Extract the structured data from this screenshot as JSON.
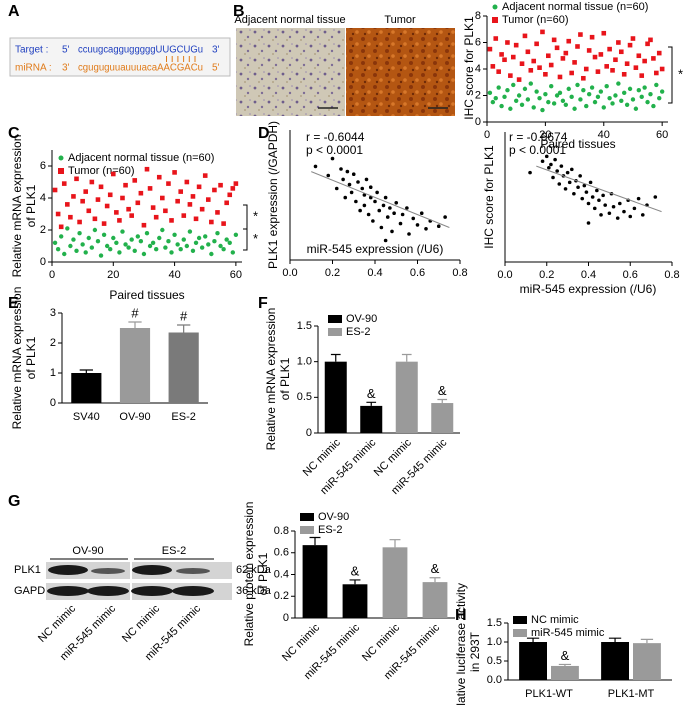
{
  "panel_labels": [
    "A",
    "B",
    "C",
    "D",
    "E",
    "F",
    "G",
    "H"
  ],
  "sequence": {
    "target_label": "Target :",
    "target_5": "5'",
    "target_seq": "ccuugcaggugggggUUGCUGu",
    "target_3": "3'",
    "mirna_label": "miRNA :",
    "mirna_3": "3'",
    "mirna_seq": "cguguguuauuuacaAACGACu",
    "mirna_5": "5'"
  },
  "ihc_images": [
    "Adjacent normal tissue",
    "Tumor"
  ],
  "western_blot": {
    "groups": [
      "OV-90",
      "ES-2"
    ],
    "proteins": [
      "PLK1",
      "GAPDH"
    ],
    "sizes": [
      "62 kDa",
      "36 kDa"
    ],
    "lanes": [
      "NC mimic",
      "miR-545 mimic",
      "NC mimic",
      "miR-545 mimic"
    ]
  },
  "chart_data": [
    {
      "type": "scatter",
      "ylabel": [
        "IHC score for PLK1"
      ],
      "xlabel": "Paired tissues",
      "x": [
        1,
        2,
        3,
        4,
        5,
        6,
        7,
        8,
        9,
        10,
        11,
        12,
        13,
        14,
        15,
        16,
        17,
        18,
        19,
        20,
        21,
        22,
        23,
        24,
        25,
        26,
        27,
        28,
        29,
        30,
        31,
        32,
        33,
        34,
        35,
        36,
        37,
        38,
        39,
        40,
        41,
        42,
        43,
        44,
        45,
        46,
        47,
        48,
        49,
        50,
        51,
        52,
        53,
        54,
        55,
        56,
        57,
        58,
        59,
        60
      ],
      "xlim": [
        0,
        62
      ],
      "xticks": [
        0,
        20,
        40,
        60
      ],
      "ylim": [
        0,
        8
      ],
      "yticks": [
        0,
        2,
        4,
        6,
        8
      ],
      "series": [
        {
          "name": "Adjacent normal tissue (n=60)",
          "color": "#22b14c",
          "marker": "circle",
          "values": [
            2.2,
            1.5,
            1.8,
            2.6,
            1.2,
            1.9,
            2.4,
            1.0,
            2.8,
            1.6,
            2.0,
            1.3,
            2.5,
            1.7,
            2.9,
            1.1,
            2.3,
            1.8,
            0.9,
            2.1,
            1.5,
            2.7,
            1.4,
            2.0,
            2.2,
            1.6,
            1.3,
            2.5,
            1.9,
            1.0,
            2.8,
            1.7,
            2.4,
            1.2,
            2.1,
            2.6,
            1.5,
            1.9,
            2.3,
            1.1,
            2.7,
            1.8,
            1.4,
            2.0,
            2.9,
            1.6,
            2.2,
            1.3,
            2.5,
            1.7,
            1.0,
            2.4,
            1.9,
            2.6,
            1.5,
            2.1,
            1.2,
            2.8,
            1.8,
            2.3
          ]
        },
        {
          "name": "Tumor (n=60)",
          "color": "#e8141b",
          "marker": "square",
          "values": [
            5.5,
            4.2,
            6.3,
            3.8,
            5.1,
            4.7,
            6.0,
            3.5,
            4.9,
            5.8,
            3.2,
            4.4,
            6.5,
            5.3,
            3.9,
            4.6,
            5.9,
            4.1,
            6.8,
            3.6,
            5.0,
            4.3,
            6.2,
            5.6,
            3.4,
            4.8,
            5.2,
            6.1,
            3.7,
            4.5,
            5.7,
            6.6,
            3.3,
            4.0,
            5.4,
            6.4,
            4.9,
            3.8,
            5.1,
            6.7,
            4.2,
            5.5,
            3.9,
            4.7,
            6.0,
            5.3,
            3.6,
            4.4,
            5.8,
            6.3,
            4.1,
            5.0,
            3.5,
            4.6,
            5.9,
            6.2,
            4.8,
            3.7,
            5.2,
            4.0
          ]
        }
      ],
      "significance": [
        "*"
      ]
    },
    {
      "type": "scatter",
      "ylabel": [
        "Relative mRNA expression",
        "of PLK1"
      ],
      "xlabel": "Paired tissues",
      "x": [
        1,
        2,
        3,
        4,
        5,
        6,
        7,
        8,
        9,
        10,
        11,
        12,
        13,
        14,
        15,
        16,
        17,
        18,
        19,
        20,
        21,
        22,
        23,
        24,
        25,
        26,
        27,
        28,
        29,
        30,
        31,
        32,
        33,
        34,
        35,
        36,
        37,
        38,
        39,
        40,
        41,
        42,
        43,
        44,
        45,
        46,
        47,
        48,
        49,
        50,
        51,
        52,
        53,
        54,
        55,
        56,
        57,
        58,
        59,
        60
      ],
      "xlim": [
        0,
        62
      ],
      "xticks": [
        0,
        20,
        40,
        60
      ],
      "ylim": [
        0,
        7
      ],
      "yticks": [
        0,
        2,
        4,
        6
      ],
      "series": [
        {
          "name": "Adjacent normal tissue (n=60)",
          "color": "#22b14c",
          "marker": "circle",
          "values": [
            1.2,
            0.8,
            1.6,
            0.5,
            2.1,
            1.0,
            1.4,
            0.7,
            1.8,
            1.1,
            0.6,
            1.5,
            0.9,
            2.0,
            1.3,
            0.4,
            1.7,
            1.0,
            0.8,
            1.5,
            1.2,
            0.6,
            1.9,
            1.1,
            0.9,
            1.4,
            0.7,
            1.6,
            1.3,
            0.5,
            1.8,
            1.0,
            1.2,
            0.8,
            1.5,
            2.0,
            0.9,
            1.3,
            0.6,
            1.7,
            1.1,
            0.8,
            1.4,
            1.0,
            1.9,
            0.7,
            1.2,
            1.5,
            0.9,
            1.6,
            1.1,
            0.5,
            1.3,
            1.8,
            1.0,
            0.8,
            1.4,
            1.2,
            0.6,
            1.7
          ]
        },
        {
          "name": "Tumor (n=60)",
          "color": "#e8141b",
          "marker": "square",
          "values": [
            4.5,
            3.0,
            2.2,
            4.9,
            3.6,
            2.8,
            4.1,
            5.2,
            2.5,
            3.8,
            4.4,
            3.2,
            5.0,
            2.7,
            3.9,
            4.7,
            2.4,
            3.5,
            4.2,
            5.5,
            3.1,
            2.6,
            4.0,
            4.8,
            3.3,
            2.9,
            5.1,
            3.7,
            4.3,
            2.3,
            5.8,
            4.6,
            3.4,
            2.8,
            5.3,
            4.0,
            3.2,
            4.9,
            2.6,
            5.6,
            3.8,
            4.4,
            2.9,
            5.0,
            3.6,
            4.1,
            2.7,
            4.7,
            3.3,
            5.4,
            3.9,
            2.5,
            4.5,
            3.1,
            4.8,
            2.4,
            3.7,
            4.2,
            4.6,
            4.9
          ]
        }
      ],
      "significance": [
        "*",
        "*"
      ]
    },
    {
      "type": "scatter",
      "ylabel": [
        "PLK1 expression (/GAPDH)"
      ],
      "xlabel": "miR-545 expression (/U6)",
      "annotations": [
        "r = -0.6044",
        "p < 0.0001"
      ],
      "xlim": [
        0,
        0.8
      ],
      "xticks": [
        {
          "value": 0,
          "label": "0.0"
        },
        0.2,
        0.4,
        0.6,
        0.8
      ],
      "ylim": [
        0,
        1
      ],
      "series": [
        {
          "color": "#000000",
          "marker": "circle",
          "x": [
            0.12,
            0.18,
            0.2,
            0.22,
            0.24,
            0.25,
            0.26,
            0.27,
            0.28,
            0.29,
            0.3,
            0.31,
            0.32,
            0.33,
            0.34,
            0.35,
            0.35,
            0.36,
            0.37,
            0.38,
            0.38,
            0.39,
            0.4,
            0.41,
            0.42,
            0.43,
            0.44,
            0.45,
            0.46,
            0.47,
            0.48,
            0.49,
            0.5,
            0.52,
            0.53,
            0.55,
            0.56,
            0.58,
            0.6,
            0.62,
            0.64,
            0.66,
            0.7,
            0.73,
            0.45
          ],
          "values": [
            0.72,
            0.65,
            0.78,
            0.55,
            0.7,
            0.62,
            0.48,
            0.68,
            0.58,
            0.52,
            0.66,
            0.45,
            0.6,
            0.38,
            0.55,
            0.5,
            0.42,
            0.62,
            0.35,
            0.48,
            0.56,
            0.3,
            0.45,
            0.52,
            0.38,
            0.25,
            0.42,
            0.48,
            0.33,
            0.4,
            0.22,
            0.36,
            0.44,
            0.28,
            0.35,
            0.4,
            0.2,
            0.32,
            0.27,
            0.36,
            0.24,
            0.3,
            0.26,
            0.33,
            0.15
          ]
        }
      ],
      "trend_line": {
        "color": "#888888",
        "x": [
          0.1,
          0.75
        ],
        "values": [
          0.68,
          0.25
        ]
      }
    },
    {
      "type": "scatter",
      "ylabel": [
        "IHC score for PLK1"
      ],
      "xlabel": "miR-545 expression (/U6)",
      "annotations": [
        "r = -0.6674",
        "p < 0.0001"
      ],
      "xlim": [
        0,
        0.8
      ],
      "xticks": [
        {
          "value": 0,
          "label": "0.0"
        },
        0.2,
        0.4,
        0.6,
        0.8
      ],
      "ylim": [
        0,
        8
      ],
      "series": [
        {
          "color": "#000000",
          "marker": "circle",
          "x": [
            0.12,
            0.18,
            0.2,
            0.21,
            0.22,
            0.23,
            0.24,
            0.25,
            0.26,
            0.27,
            0.28,
            0.29,
            0.3,
            0.31,
            0.32,
            0.33,
            0.34,
            0.35,
            0.36,
            0.37,
            0.38,
            0.39,
            0.4,
            0.41,
            0.42,
            0.43,
            0.44,
            0.45,
            0.46,
            0.47,
            0.48,
            0.5,
            0.51,
            0.52,
            0.54,
            0.55,
            0.57,
            0.59,
            0.6,
            0.62,
            0.64,
            0.66,
            0.68,
            0.72,
            0.4
          ],
          "values": [
            5.5,
            6.2,
            6.5,
            5.8,
            6.0,
            5.2,
            6.3,
            5.6,
            4.8,
            5.9,
            5.3,
            4.5,
            5.5,
            4.9,
            5.7,
            4.2,
            5.0,
            4.6,
            5.3,
            3.9,
            4.7,
            4.3,
            3.6,
            4.9,
            4.0,
            3.3,
            4.4,
            3.8,
            2.9,
            4.1,
            3.5,
            3.0,
            4.2,
            3.4,
            2.7,
            3.6,
            3.1,
            3.8,
            2.8,
            3.3,
            3.9,
            2.9,
            3.5,
            4.0,
            2.4
          ]
        }
      ],
      "trend_line": {
        "color": "#888888",
        "x": [
          0.15,
          0.75
        ],
        "values": [
          5.9,
          3.1
        ]
      }
    },
    {
      "type": "bar",
      "ylabel": [
        "Relative mRNA expression",
        "of PLK1"
      ],
      "categories": [
        "SV40",
        "OV-90",
        "ES-2"
      ],
      "values": [
        1.0,
        2.5,
        2.35
      ],
      "errors": [
        0.1,
        0.2,
        0.25
      ],
      "colors": [
        "#000000",
        "#9a9a9a",
        "#7a7a7a"
      ],
      "markers": [
        null,
        "#",
        "#"
      ],
      "ylim": [
        0,
        3
      ],
      "yticks": [
        0,
        1,
        2,
        3
      ]
    },
    {
      "type": "bar",
      "ylabel": [
        "Relative mRNA expression",
        "of PLK1"
      ],
      "categories": [
        "NC mimic",
        "miR-545 mimic",
        "NC mimic",
        "miR-545 mimic"
      ],
      "rotated_categories": true,
      "series": [
        {
          "name": "OV-90",
          "color": "#000000",
          "values": [
            1.0,
            0.38,
            null,
            null
          ],
          "errors": [
            0.1,
            0.05,
            null,
            null
          ],
          "markers": [
            null,
            "&",
            null,
            null
          ]
        },
        {
          "name": "ES-2",
          "color": "#9a9a9a",
          "values": [
            null,
            null,
            1.0,
            0.42
          ],
          "errors": [
            null,
            null,
            0.1,
            0.05
          ],
          "markers": [
            null,
            null,
            null,
            "&"
          ]
        }
      ],
      "ylim": [
        0,
        1.5
      ],
      "yticks": [
        0,
        0.5,
        {
          "value": 1,
          "label": "1.0"
        },
        1.5
      ]
    },
    {
      "type": "bar",
      "ylabel": [
        "Relative protein expression",
        "of PLK1"
      ],
      "categories": [
        "NC mimic",
        "miR-545 mimic",
        "NC mimic",
        "miR-545 mimic"
      ],
      "rotated_categories": true,
      "series": [
        {
          "name": "OV-90",
          "color": "#000000",
          "values": [
            0.67,
            0.31,
            null,
            null
          ],
          "errors": [
            0.07,
            0.04,
            null,
            null
          ],
          "markers": [
            null,
            "&",
            null,
            null
          ]
        },
        {
          "name": "ES-2",
          "color": "#9a9a9a",
          "values": [
            null,
            null,
            0.65,
            0.33
          ],
          "errors": [
            null,
            null,
            0.07,
            0.04
          ],
          "markers": [
            null,
            null,
            null,
            "&"
          ]
        }
      ],
      "ylim": [
        0,
        0.8
      ],
      "yticks": [
        0,
        0.2,
        0.4,
        0.6,
        0.8
      ]
    },
    {
      "type": "bar",
      "ylabel": [
        "Relative luciferase activity",
        "in 293T"
      ],
      "categories": [
        "PLK1-WT",
        "PLK1-MT"
      ],
      "series": [
        {
          "name": "NC mimic",
          "color": "#000000",
          "values": [
            1.0,
            1.0
          ],
          "errors": [
            0.1,
            0.1
          ],
          "markers": [
            null,
            null
          ]
        },
        {
          "name": "miR-545 mimic",
          "color": "#9a9a9a",
          "values": [
            0.37,
            0.97
          ],
          "errors": [
            0.04,
            0.1
          ],
          "markers": [
            "&",
            null
          ]
        }
      ],
      "ylim": [
        0,
        1.5
      ],
      "yticks": [
        {
          "value": 0,
          "label": "0.0"
        },
        0.5,
        {
          "value": 1,
          "label": "1.0"
        },
        1.5
      ]
    }
  ]
}
